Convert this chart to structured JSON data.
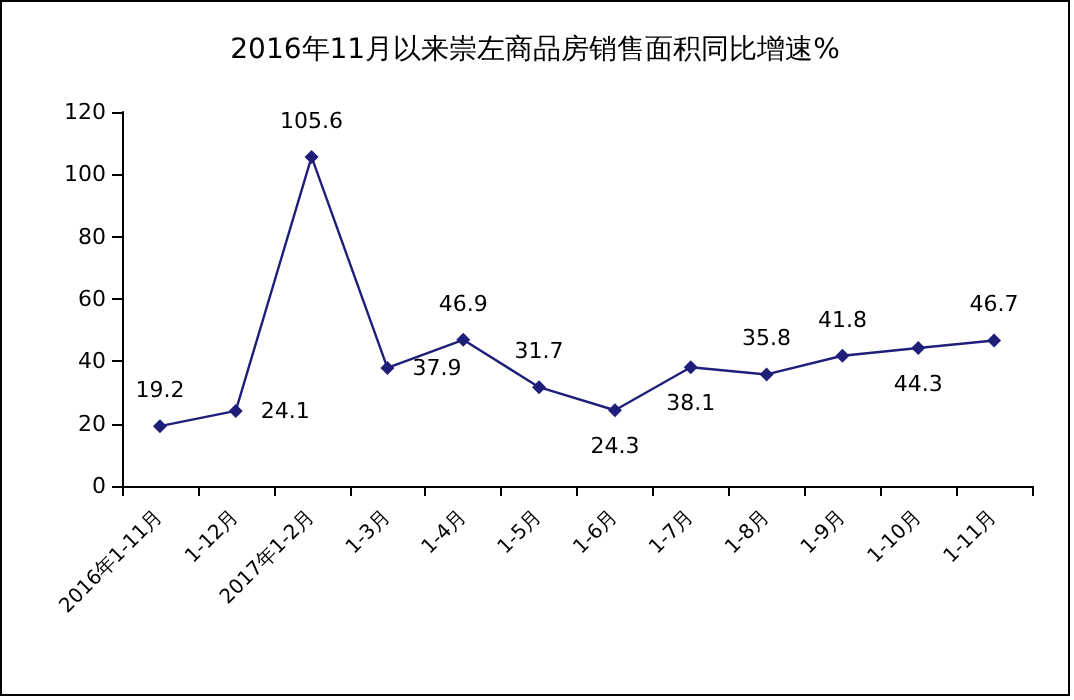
{
  "chart_data": {
    "type": "line",
    "title": "2016年11月以来崇左商品房销售面积同比增速%",
    "categories": [
      "2016年1-11月",
      "1-12月",
      "2017年1-2月",
      "1-3月",
      "1-4月",
      "1-5月",
      "1-6月",
      "1-7月",
      "1-8月",
      "1-9月",
      "1-10月",
      "1-11月"
    ],
    "series": [
      {
        "color": "#1f1f7a",
        "values": [
          19.2,
          24.1,
          105.6,
          37.9,
          46.9,
          31.7,
          24.3,
          38.1,
          35.8,
          41.8,
          44.3,
          46.7
        ]
      }
    ],
    "ylim": [
      0,
      120
    ],
    "yticks": [
      0,
      20,
      40,
      60,
      80,
      100,
      120
    ],
    "grid": false,
    "marker": "diamond",
    "line_style": "solid",
    "data_labels": true
  }
}
